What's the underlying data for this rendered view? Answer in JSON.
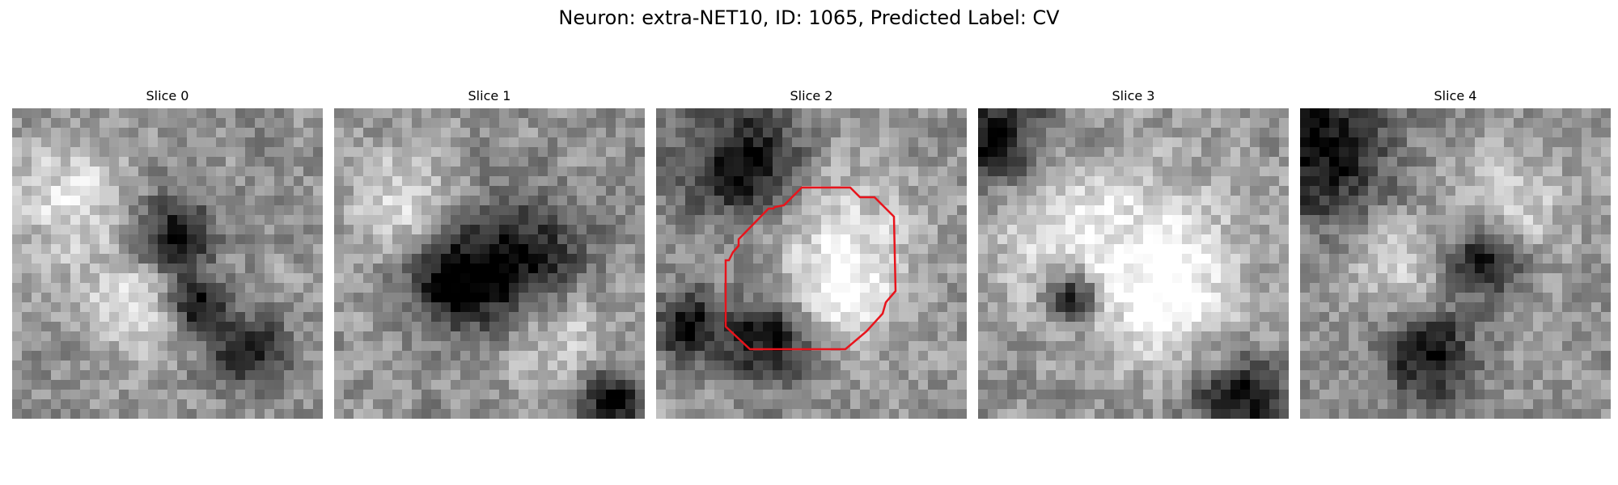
{
  "figure": {
    "title": "Neuron: extra-NET10, ID: 1065, Predicted Label: CV"
  },
  "slices": [
    {
      "label": "Slice 0",
      "seed": 11,
      "dark_spots": [
        [
          0.52,
          0.42,
          0.1
        ],
        [
          0.76,
          0.78,
          0.08
        ],
        [
          0.6,
          0.64,
          0.06
        ]
      ],
      "bright_spots": [
        [
          0.18,
          0.3,
          0.14
        ],
        [
          0.4,
          0.62,
          0.12
        ]
      ]
    },
    {
      "label": "Slice 1",
      "seed": 23,
      "dark_spots": [
        [
          0.6,
          0.5,
          0.14
        ],
        [
          0.38,
          0.56,
          0.1
        ],
        [
          0.9,
          0.95,
          0.08
        ]
      ],
      "bright_spots": [
        [
          0.22,
          0.3,
          0.12
        ],
        [
          0.72,
          0.72,
          0.12
        ]
      ]
    },
    {
      "label": "Slice 2",
      "seed": 37,
      "dark_spots": [
        [
          0.28,
          0.18,
          0.14
        ],
        [
          0.36,
          0.74,
          0.1
        ],
        [
          0.1,
          0.7,
          0.08
        ]
      ],
      "bright_spots": [
        [
          0.58,
          0.44,
          0.18
        ],
        [
          0.62,
          0.6,
          0.1
        ]
      ],
      "outline": true
    },
    {
      "label": "Slice 3",
      "seed": 41,
      "dark_spots": [
        [
          0.04,
          0.1,
          0.14
        ],
        [
          0.84,
          0.94,
          0.1
        ],
        [
          0.3,
          0.6,
          0.06
        ]
      ],
      "bright_spots": [
        [
          0.2,
          0.36,
          0.16
        ],
        [
          0.56,
          0.44,
          0.2
        ],
        [
          0.62,
          0.64,
          0.14
        ]
      ]
    },
    {
      "label": "Slice 4",
      "seed": 53,
      "dark_spots": [
        [
          0.06,
          0.14,
          0.16
        ],
        [
          0.42,
          0.8,
          0.1
        ],
        [
          0.6,
          0.48,
          0.08
        ]
      ],
      "bright_spots": [
        [
          0.68,
          0.3,
          0.12
        ],
        [
          0.3,
          0.5,
          0.1
        ]
      ]
    }
  ],
  "outline_color": "#e8141c"
}
